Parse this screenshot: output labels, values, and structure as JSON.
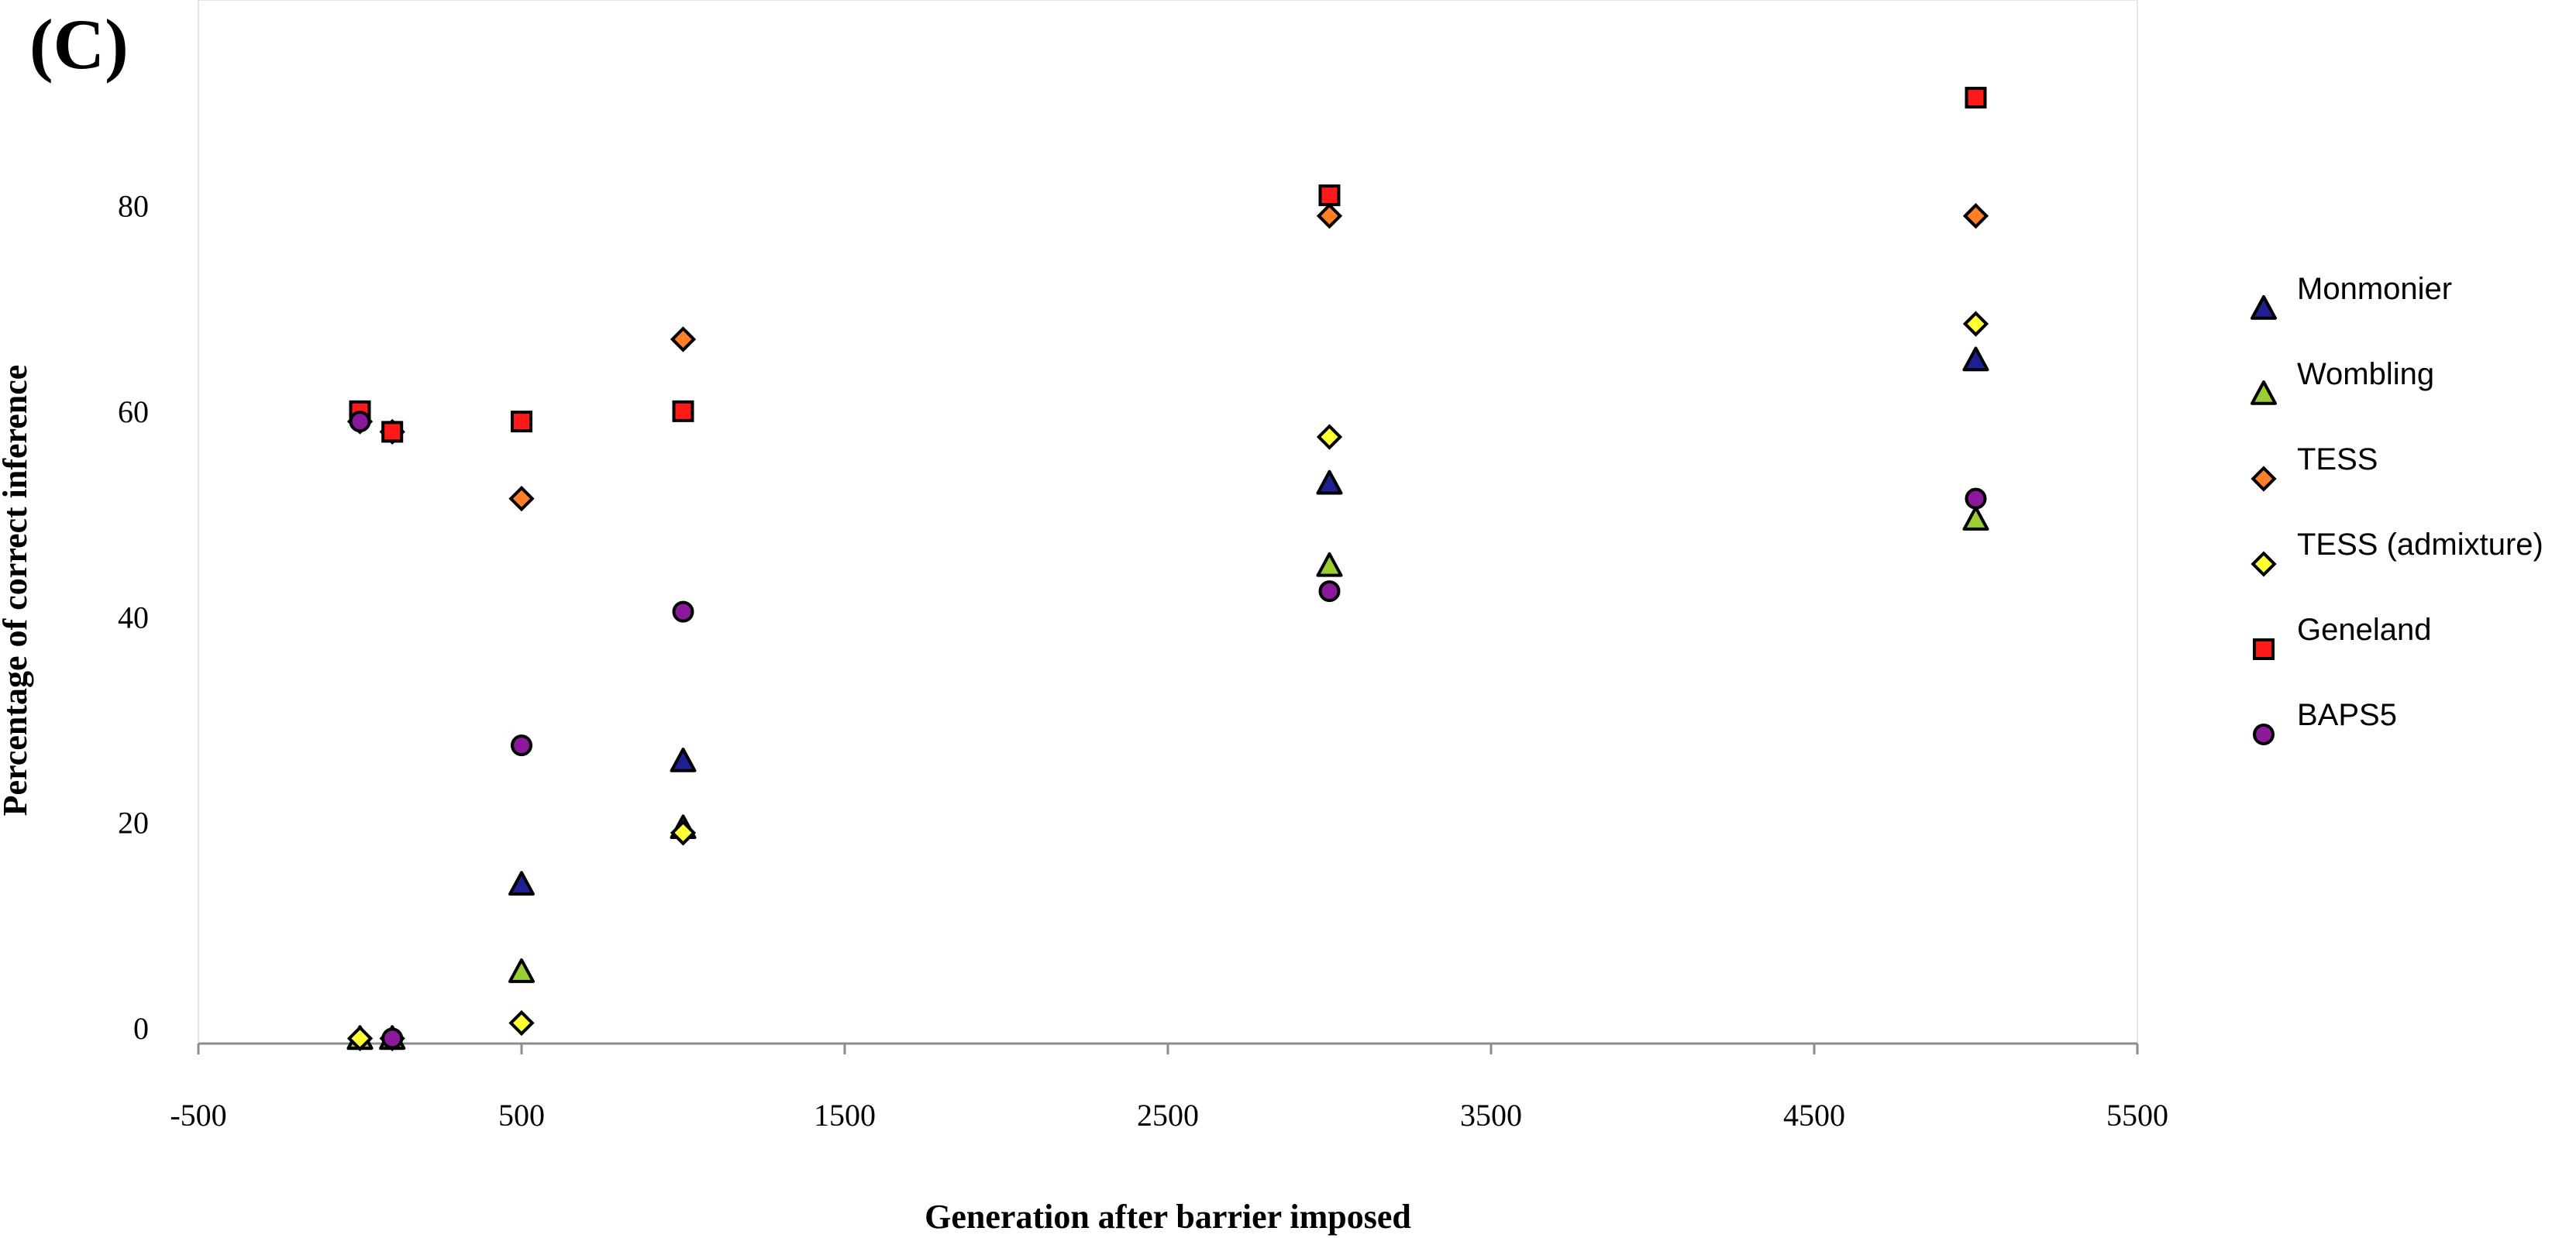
{
  "panel_label": "(C)",
  "chart_data": {
    "type": "scatter",
    "title": "",
    "xlabel": "Generation after barrier imposed",
    "ylabel": "Percentage of correct inference",
    "xlim": [
      -500,
      5500
    ],
    "ylim": [
      -1.5,
      100
    ],
    "xticks": [
      -500,
      500,
      1500,
      2500,
      3500,
      4500,
      5500
    ],
    "yticks": [
      0,
      20,
      40,
      60,
      80
    ],
    "grid": false,
    "legend_position": "right",
    "series": [
      {
        "name": "Monmonier",
        "marker": "triangle",
        "color": "#1f1f8f",
        "points": [
          [
            0,
            -1
          ],
          [
            100,
            -1
          ],
          [
            500,
            14
          ],
          [
            1000,
            26
          ],
          [
            3000,
            53
          ],
          [
            5000,
            65
          ]
        ]
      },
      {
        "name": "Wombling",
        "marker": "triangle",
        "color": "#9acd32",
        "points": [
          [
            0,
            -1
          ],
          [
            100,
            -1
          ],
          [
            500,
            5.5
          ],
          [
            1000,
            19.5
          ],
          [
            3000,
            45
          ],
          [
            5000,
            49.5
          ]
        ]
      },
      {
        "name": "TESS",
        "marker": "diamond",
        "color": "#ff7f27",
        "points": [
          [
            0,
            59
          ],
          [
            100,
            58
          ],
          [
            500,
            51.5
          ],
          [
            1000,
            67
          ],
          [
            3000,
            79
          ],
          [
            5000,
            79
          ]
        ]
      },
      {
        "name": "TESS (admixture)",
        "marker": "diamond",
        "color": "#ffff33",
        "points": [
          [
            0,
            -1
          ],
          [
            100,
            -1
          ],
          [
            500,
            0.5
          ],
          [
            1000,
            19
          ],
          [
            3000,
            57.5
          ],
          [
            5000,
            68.5
          ]
        ]
      },
      {
        "name": "Geneland",
        "marker": "square",
        "color": "#ff1a1a",
        "points": [
          [
            0,
            60
          ],
          [
            100,
            58
          ],
          [
            500,
            59
          ],
          [
            1000,
            60
          ],
          [
            3000,
            81
          ],
          [
            5000,
            90.5
          ]
        ]
      },
      {
        "name": "BAPS5",
        "marker": "circle",
        "color": "#8b1a9b",
        "points": [
          [
            0,
            59
          ],
          [
            100,
            -1
          ],
          [
            500,
            27.5
          ],
          [
            1000,
            40.5
          ],
          [
            3000,
            42.5
          ],
          [
            5000,
            51.5
          ]
        ]
      }
    ]
  }
}
